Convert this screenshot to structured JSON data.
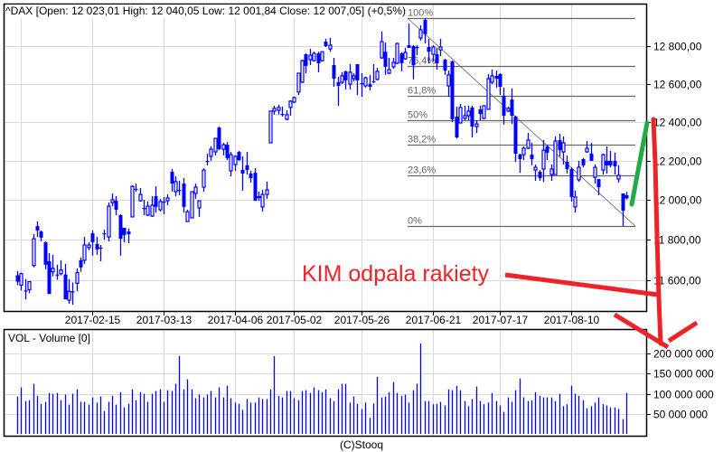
{
  "header": {
    "title": "^DAX [Open: 12 023,01  High: 12 040,05  Low: 12 001,84  Close: 12 007,05] (+0,5%)"
  },
  "footer": {
    "copyright": "(C)Stooq"
  },
  "colors": {
    "candle": "#0000ff",
    "grid": "#d8d8d8",
    "fib_line": "#666666",
    "annotation_red": "#ee2229",
    "annotation_green": "#22aa44"
  },
  "chart_data": [
    {
      "type": "candlestick",
      "title": "^DAX [Open: 12 023,01  High: 12 040,05  Low: 12 001,84  Close: 12 007,05] (+0,5%)",
      "scale": "log",
      "ylim": [
        11470,
        12990
      ],
      "grid": true,
      "x_tick_labels": [
        "2017-02-15",
        "2017-03-13",
        "2017-04-06",
        "2017-05-02",
        "2017-05-26",
        "2017-06-21",
        "2017-07-17",
        "2017-08-10"
      ],
      "y_ticks": [
        11600,
        11800,
        12000,
        12200,
        12400,
        12600,
        12800
      ],
      "y_tick_labels": [
        "11 600,00",
        "11 800,00",
        "12 000,00",
        "12 200,00",
        "12 400,00",
        "12 600,00",
        "12 800,00"
      ],
      "ohlc_fields": [
        "open",
        "high",
        "low",
        "close"
      ],
      "candles": [
        [
          11625,
          11646,
          11577,
          11594
        ],
        [
          11577,
          11638,
          11551,
          11633
        ],
        [
          11551,
          11607,
          11508,
          11547
        ],
        [
          11555,
          11594,
          11538,
          11594
        ],
        [
          11673,
          11828,
          11664,
          11805
        ],
        [
          11868,
          11891,
          11814,
          11846
        ],
        [
          11841,
          11846,
          11792,
          11810
        ],
        [
          11788,
          11792,
          11655,
          11677
        ],
        [
          11694,
          11734,
          11534,
          11534
        ],
        [
          11642,
          11725,
          11620,
          11659
        ],
        [
          11629,
          11677,
          11603,
          11629
        ],
        [
          11633,
          11699,
          11625,
          11651
        ],
        [
          11629,
          11681,
          11508,
          11508
        ],
        [
          11504,
          11607,
          11487,
          11547
        ],
        [
          11547,
          11590,
          11482,
          11547
        ],
        [
          11586,
          11659,
          11547,
          11638
        ],
        [
          11699,
          11712,
          11642,
          11664
        ],
        [
          11699,
          11814,
          11681,
          11774
        ],
        [
          11761,
          11788,
          11748,
          11774
        ],
        [
          11832,
          11846,
          11721,
          11788
        ],
        [
          11779,
          11814,
          11725,
          11752
        ],
        [
          11761,
          11774,
          11694,
          11761
        ],
        [
          11828,
          11850,
          11801,
          11832
        ],
        [
          11814,
          11986,
          11792,
          11968
        ],
        [
          11986,
          12032,
          11968,
          12000
        ],
        [
          11995,
          12018,
          11923,
          11950
        ],
        [
          11923,
          11927,
          11721,
          11805
        ],
        [
          11859,
          11859,
          11788,
          11823
        ],
        [
          11841,
          11855,
          11783,
          11828
        ],
        [
          11914,
          12073,
          11914,
          12068
        ],
        [
          12055,
          12082,
          12041,
          12055
        ],
        [
          11995,
          12059,
          11991,
          12027
        ],
        [
          11959,
          12000,
          11923,
          11959
        ],
        [
          11923,
          11991,
          11918,
          11968
        ],
        [
          11918,
          12018,
          11914,
          11973
        ],
        [
          12018,
          12068,
          11936,
          11964
        ],
        [
          11950,
          12005,
          11941,
          11991
        ],
        [
          11991,
          12014,
          11927,
          11991
        ],
        [
          11995,
          12027,
          11973,
          12009
        ],
        [
          12142,
          12156,
          12041,
          12082
        ],
        [
          12041,
          12119,
          12018,
          12092
        ],
        [
          12050,
          12096,
          12023,
          12050
        ],
        [
          12082,
          12110,
          11936,
          11964
        ],
        [
          11891,
          11950,
          11891,
          11940
        ],
        [
          11909,
          12041,
          11909,
          12041
        ],
        [
          12032,
          12082,
          12005,
          12064
        ],
        [
          11959,
          11995,
          11914,
          11995
        ],
        [
          12064,
          12160,
          12041,
          12151
        ],
        [
          12198,
          12235,
          12175,
          12198
        ],
        [
          12221,
          12272,
          12198,
          12258
        ],
        [
          12244,
          12314,
          12226,
          12314
        ],
        [
          12370,
          12375,
          12253,
          12258
        ],
        [
          12258,
          12291,
          12226,
          12281
        ],
        [
          12281,
          12295,
          12202,
          12212
        ],
        [
          12147,
          12244,
          12119,
          12230
        ],
        [
          12179,
          12226,
          12147,
          12221
        ],
        [
          12244,
          12249,
          12198,
          12202
        ],
        [
          12151,
          12221,
          12046,
          12133
        ],
        [
          12175,
          12244,
          12128,
          12151
        ],
        [
          12133,
          12147,
          12087,
          12110
        ],
        [
          12137,
          12161,
          11995,
          11995
        ],
        [
          12018,
          12041,
          11995,
          12009
        ],
        [
          11964,
          12050,
          11941,
          12027
        ],
        [
          12027,
          12092,
          12005,
          12050
        ],
        [
          12291,
          12456,
          12291,
          12456
        ],
        [
          12456,
          12484,
          12437,
          12470
        ],
        [
          12460,
          12489,
          12437,
          12475
        ],
        [
          12441,
          12479,
          12427,
          12441
        ],
        [
          12413,
          12460,
          12408,
          12437
        ],
        [
          12475,
          12512,
          12432,
          12508
        ],
        [
          12503,
          12531,
          12498,
          12527
        ],
        [
          12556,
          12656,
          12541,
          12656
        ],
        [
          12608,
          12728,
          12603,
          12723
        ],
        [
          12757,
          12762,
          12656,
          12695
        ],
        [
          12728,
          12786,
          12699,
          12752
        ],
        [
          12723,
          12771,
          12718,
          12762
        ],
        [
          12762,
          12771,
          12661,
          12709
        ],
        [
          12723,
          12771,
          12718,
          12771
        ],
        [
          12825,
          12840,
          12796,
          12801
        ],
        [
          12786,
          12845,
          12771,
          12806
        ],
        [
          12699,
          12738,
          12584,
          12627
        ],
        [
          12608,
          12637,
          12484,
          12589
        ],
        [
          12608,
          12661,
          12598,
          12642
        ],
        [
          12666,
          12670,
          12570,
          12618
        ],
        [
          12598,
          12704,
          12570,
          12661
        ],
        [
          12627,
          12656,
          12613,
          12642
        ],
        [
          12704,
          12704,
          12541,
          12618
        ],
        [
          12603,
          12656,
          12531,
          12603
        ],
        [
          12589,
          12637,
          12580,
          12632
        ],
        [
          12598,
          12647,
          12565,
          12584
        ],
        [
          12613,
          12704,
          12603,
          12613
        ],
        [
          12623,
          12685,
          12618,
          12666
        ],
        [
          12738,
          12879,
          12733,
          12825
        ],
        [
          12771,
          12820,
          12647,
          12690
        ],
        [
          12656,
          12738,
          12651,
          12675
        ],
        [
          12690,
          12738,
          12680,
          12714
        ],
        [
          12709,
          12820,
          12704,
          12815
        ],
        [
          12762,
          12767,
          12666,
          12709
        ],
        [
          12733,
          12791,
          12728,
          12767
        ],
        [
          12806,
          12923,
          12791,
          12791
        ],
        [
          12801,
          12806,
          12623,
          12699
        ],
        [
          12796,
          12806,
          12752,
          12791
        ],
        [
          12845,
          12913,
          12830,
          12889
        ],
        [
          12943,
          12952,
          12815,
          12865
        ],
        [
          12796,
          12840,
          12709,
          12771
        ],
        [
          12757,
          12806,
          12718,
          12796
        ],
        [
          12757,
          12791,
          12675,
          12709
        ],
        [
          12781,
          12840,
          12747,
          12796
        ],
        [
          12728,
          12733,
          12647,
          12670
        ],
        [
          12589,
          12670,
          12531,
          12647
        ],
        [
          12719,
          12723,
          12399,
          12413
        ],
        [
          12427,
          12479,
          12314,
          12319
        ],
        [
          12394,
          12493,
          12394,
          12475
        ],
        [
          12418,
          12484,
          12408,
          12432
        ],
        [
          12432,
          12484,
          12408,
          12456
        ],
        [
          12475,
          12484,
          12319,
          12375
        ],
        [
          12375,
          12408,
          12342,
          12389
        ],
        [
          12465,
          12484,
          12408,
          12441
        ],
        [
          12418,
          12484,
          12413,
          12484
        ],
        [
          12465,
          12651,
          12465,
          12627
        ],
        [
          12608,
          12675,
          12598,
          12642
        ],
        [
          12642,
          12670,
          12580,
          12627
        ],
        [
          12651,
          12656,
          12541,
          12584
        ],
        [
          12536,
          12580,
          12385,
          12432
        ],
        [
          12456,
          12479,
          12451,
          12470
        ],
        [
          12517,
          12575,
          12389,
          12432
        ],
        [
          12427,
          12432,
          12193,
          12235
        ],
        [
          12230,
          12235,
          12137,
          12207
        ],
        [
          12230,
          12272,
          12202,
          12263
        ],
        [
          12263,
          12342,
          12258,
          12305
        ],
        [
          12230,
          12291,
          12175,
          12207
        ],
        [
          12151,
          12179,
          12096,
          12165
        ],
        [
          12142,
          12151,
          12096,
          12110
        ],
        [
          12156,
          12305,
          12091,
          12253
        ],
        [
          12272,
          12281,
          12202,
          12240
        ],
        [
          12128,
          12179,
          12096,
          12156
        ],
        [
          12128,
          12324,
          12128,
          12300
        ],
        [
          12305,
          12338,
          12221,
          12253
        ],
        [
          12244,
          12324,
          12179,
          12291
        ],
        [
          12193,
          12226,
          12133,
          12156
        ],
        [
          12156,
          12165,
          11991,
          12014
        ],
        [
          11964,
          12046,
          11936,
          12014
        ],
        [
          12101,
          12198,
          12092,
          12165
        ],
        [
          12207,
          12212,
          12165,
          12175
        ],
        [
          12244,
          12300,
          12240,
          12263
        ],
        [
          12235,
          12291,
          12198,
          12198
        ],
        [
          12114,
          12179,
          12082,
          12165
        ],
        [
          12105,
          12105,
          12023,
          12064
        ],
        [
          12151,
          12235,
          12128,
          12230
        ],
        [
          12198,
          12272,
          12133,
          12175
        ],
        [
          12198,
          12249,
          12165,
          12175
        ],
        [
          12198,
          12240,
          12128,
          12170
        ],
        [
          12105,
          12175,
          12087,
          12124
        ],
        [
          12032,
          12032,
          11868,
          11945
        ],
        [
          12023.01,
          12040.05,
          12001.84,
          12007.05
        ]
      ],
      "fibonacci": {
        "high": 12952,
        "low": 11868,
        "levels": [
          {
            "value": 1.0,
            "label": "100%"
          },
          {
            "value": 0.764,
            "label": "76,4%"
          },
          {
            "value": 0.618,
            "label": "61,8%"
          },
          {
            "value": 0.5,
            "label": "50%"
          },
          {
            "value": 0.382,
            "label": "38,2%"
          },
          {
            "value": 0.236,
            "label": "23,6%"
          },
          {
            "value": 0.0,
            "label": "0%"
          }
        ]
      }
    },
    {
      "type": "bar",
      "title": "VOL - Volume [0]",
      "unit": "millions",
      "ylim": [
        0,
        235
      ],
      "grid": true,
      "y_ticks": [
        50,
        100,
        150,
        200
      ],
      "y_tick_labels": [
        "50 000 000",
        "100 000 000",
        "150 000 000",
        "200 000 000"
      ],
      "values": [
        93,
        116,
        82,
        84,
        125,
        95,
        75,
        80,
        102,
        100,
        102,
        84,
        98,
        73,
        100,
        111,
        80,
        80,
        73,
        91,
        78,
        93,
        57,
        80,
        95,
        73,
        104,
        66,
        75,
        111,
        84,
        104,
        100,
        80,
        100,
        107,
        111,
        80,
        109,
        107,
        125,
        194,
        111,
        136,
        111,
        89,
        98,
        91,
        98,
        107,
        91,
        116,
        91,
        120,
        89,
        78,
        75,
        60,
        87,
        78,
        78,
        91,
        87,
        87,
        111,
        194,
        95,
        91,
        107,
        107,
        89,
        84,
        107,
        109,
        102,
        116,
        109,
        104,
        111,
        89,
        82,
        111,
        125,
        125,
        78,
        93,
        75,
        62,
        78,
        40,
        76,
        142,
        91,
        93,
        104,
        129,
        102,
        95,
        98,
        78,
        109,
        125,
        225,
        82,
        82,
        74,
        75,
        80,
        71,
        111,
        109,
        120,
        109,
        82,
        69,
        87,
        118,
        82,
        74,
        78,
        102,
        82,
        71,
        55,
        91,
        80,
        109,
        138,
        91,
        82,
        84,
        104,
        95,
        91,
        91,
        91,
        82,
        100,
        69,
        74,
        120,
        100,
        95,
        84,
        64,
        69,
        78,
        91,
        74,
        71,
        66,
        66,
        62,
        37,
        102
      ]
    }
  ],
  "annotation": {
    "text": "KIM odpala rakiety"
  }
}
